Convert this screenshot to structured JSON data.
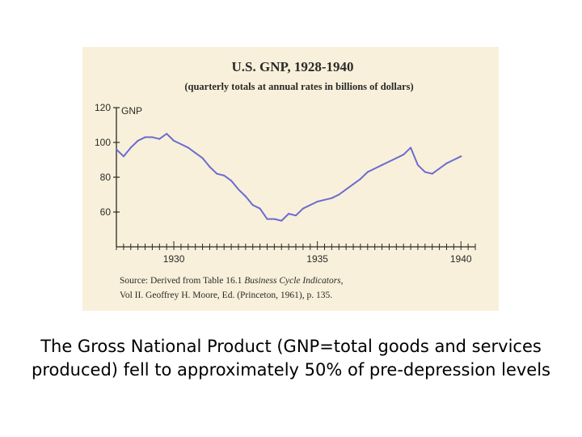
{
  "chart_data": {
    "type": "line",
    "title": "U.S. GNP, 1928-1940",
    "subtitle": "(quarterly totals at annual rates in billions of dollars)",
    "series": [
      {
        "name": "GNP",
        "x": [
          1928.0,
          1928.25,
          1928.5,
          1928.75,
          1929.0,
          1929.25,
          1929.5,
          1929.75,
          1930.0,
          1930.25,
          1930.5,
          1930.75,
          1931.0,
          1931.25,
          1931.5,
          1931.75,
          1932.0,
          1932.25,
          1932.5,
          1932.75,
          1933.0,
          1933.25,
          1933.5,
          1933.75,
          1934.0,
          1934.25,
          1934.5,
          1934.75,
          1935.0,
          1935.25,
          1935.5,
          1935.75,
          1936.0,
          1936.25,
          1936.5,
          1936.75,
          1937.0,
          1937.25,
          1937.5,
          1937.75,
          1938.0,
          1938.25,
          1938.5,
          1938.75,
          1939.0,
          1939.25,
          1939.5,
          1939.75,
          1940.0
        ],
        "values": [
          96,
          92,
          97,
          101,
          103,
          103,
          102,
          105,
          101,
          99,
          97,
          94,
          91,
          86,
          82,
          81,
          78,
          73,
          69,
          64,
          62,
          56,
          56,
          55,
          59,
          58,
          62,
          64,
          66,
          67,
          68,
          70,
          73,
          76,
          79,
          83,
          85,
          87,
          89,
          91,
          93,
          97,
          87,
          83,
          82,
          85,
          88,
          90,
          92
        ]
      }
    ],
    "xlabel": "",
    "ylabel": "",
    "xlim": [
      1928,
      1940.5
    ],
    "ylim": [
      40,
      120
    ],
    "x_ticks": [
      "1930",
      "1935",
      "1940"
    ],
    "x_tick_values": [
      1930,
      1935,
      1940
    ],
    "y_ticks": [
      "120",
      "100",
      "80",
      "60"
    ],
    "y_tick_values": [
      120,
      100,
      80,
      60
    ],
    "source_line1": "Source: Derived from Table 16.1",
    "source_line1_italic": "Business Cycle Indicators,",
    "source_line2": "Vol II. Geoffrey H. Moore, Ed. (Princeton, 1961), p. 135.",
    "grid": false,
    "line_color": "#6a6cd0",
    "axis_color": "#2a2a2a",
    "background_color": "#f8f0da"
  },
  "caption": {
    "line1": "The Gross National Product (GNP=total goods and services",
    "line2": "produced) fell to approximately 50% of pre-depression levels"
  }
}
